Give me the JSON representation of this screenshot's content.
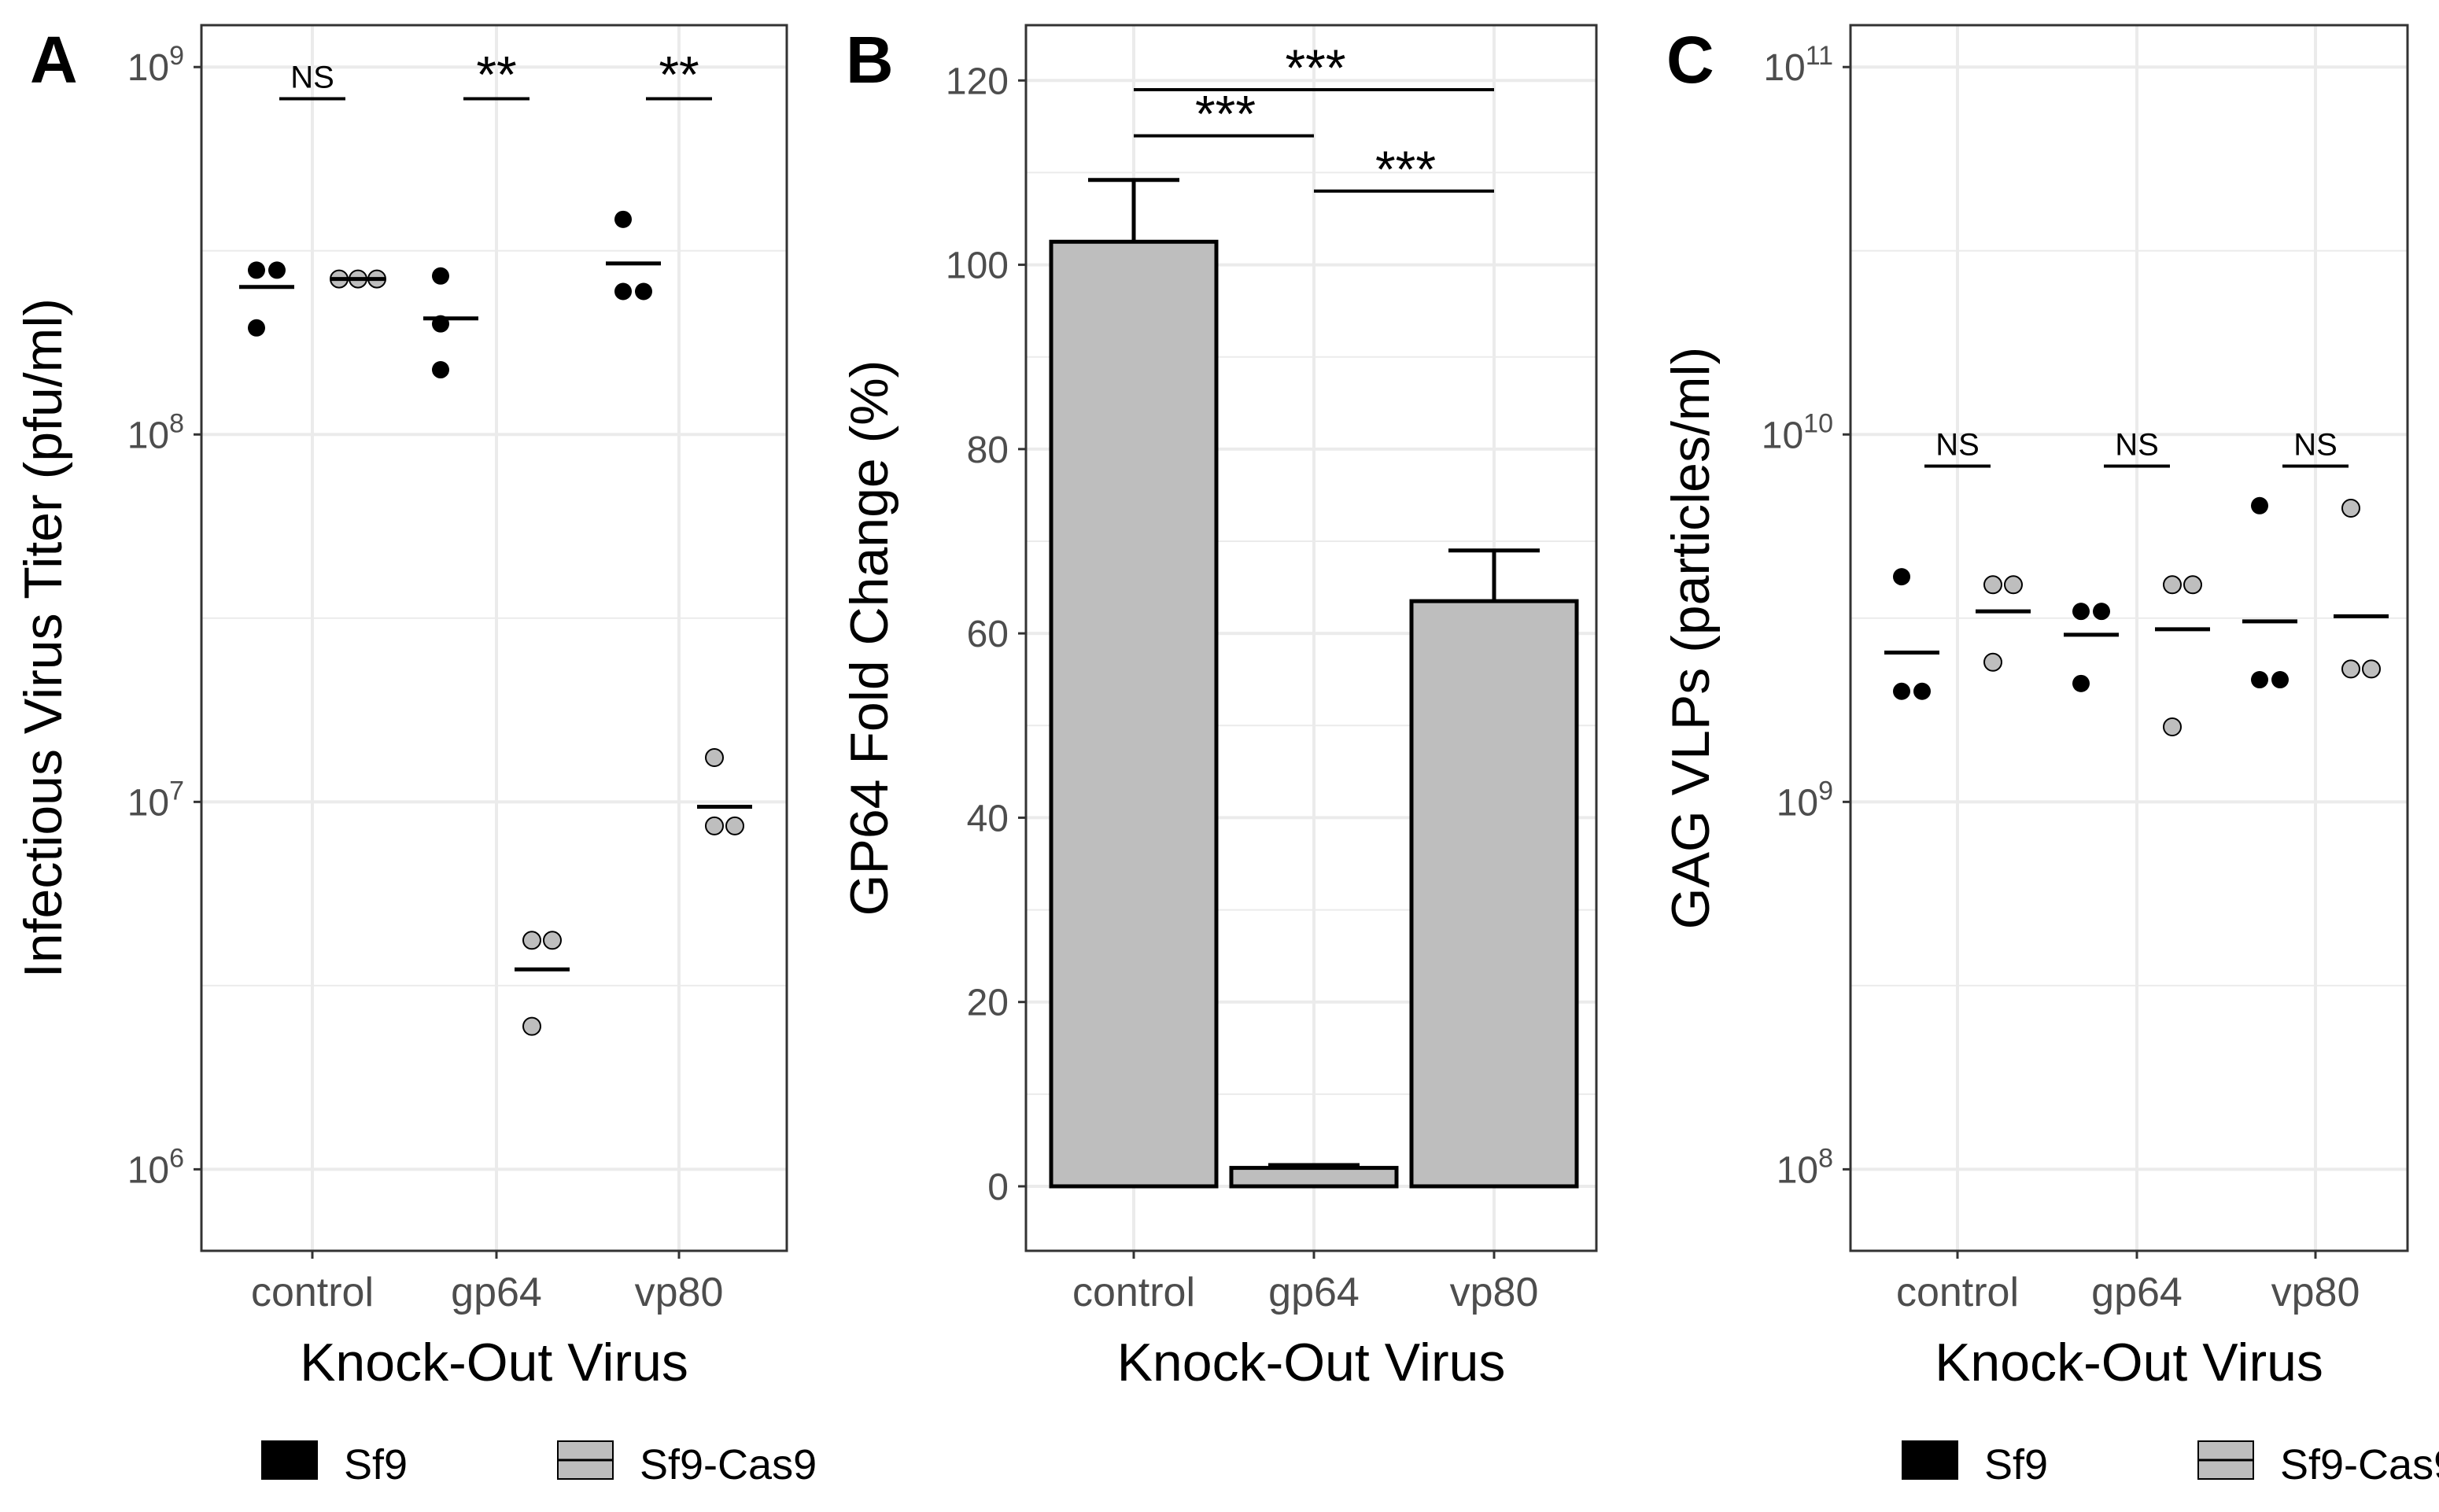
{
  "colors": {
    "sf9": "#000000",
    "sf9_cas9": "#bebebe",
    "bar_fill": "#bebebe",
    "grid": "#ebebeb"
  },
  "legend": {
    "items": [
      {
        "label": "Sf9",
        "color": "#000000"
      },
      {
        "label": "Sf9-Cas9",
        "color": "#bebebe"
      }
    ]
  },
  "chart_data": [
    {
      "panel_label": "A",
      "type": "scatter",
      "yscale": "log10",
      "ylim": [
        600000,
        1300000000
      ],
      "yticks": [
        1000000,
        10000000,
        100000000,
        1000000000
      ],
      "ytick_labels": [
        {
          "base": "10",
          "exp": "6"
        },
        {
          "base": "10",
          "exp": "7"
        },
        {
          "base": "10",
          "exp": "8"
        },
        {
          "base": "10",
          "exp": "9"
        }
      ],
      "categories": [
        "control",
        "gp64",
        "vp80"
      ],
      "xlabel": "Knock-Out Virus",
      "ylabel": "Infectious Virus Titer (pfu/ml)",
      "series": [
        {
          "name": "Sf9",
          "color": "#000000",
          "points": [
            [
              280000000,
              280000000,
              195000000
            ],
            [
              270000000,
              200000000,
              150000000
            ],
            [
              385000000,
              245000000,
              245000000
            ]
          ],
          "means": [
            252000000,
            207000000,
            292000000
          ]
        },
        {
          "name": "Sf9-Cas9",
          "color": "#bebebe",
          "points": [
            [
              265000000,
              265000000,
              265000000
            ],
            [
              4200000,
              4200000,
              2450000
            ],
            [
              13200000,
              8600000,
              8600000
            ]
          ],
          "means": [
            265000000,
            3500000,
            9700000
          ]
        }
      ],
      "annotations": [
        {
          "category": "control",
          "text": "NS",
          "y": 800000000
        },
        {
          "category": "gp64",
          "text": "**",
          "y": 800000000
        },
        {
          "category": "vp80",
          "text": "**",
          "y": 800000000
        }
      ]
    },
    {
      "panel_label": "B",
      "type": "bar",
      "ylim": [
        -7,
        126
      ],
      "yticks": [
        0,
        20,
        40,
        60,
        80,
        100,
        120
      ],
      "ytick_labels": [
        "0",
        "20",
        "40",
        "60",
        "80",
        "100",
        "120"
      ],
      "categories": [
        "control",
        "gp64",
        "vp80"
      ],
      "values": [
        102.5,
        2.0,
        63.5
      ],
      "errors": [
        6.7,
        0.3,
        5.5
      ],
      "xlabel": "Knock-Out Virus",
      "ylabel": "GP64 Fold Change (%)",
      "annotations": [
        {
          "from": "control",
          "to": "gp64",
          "text": "***",
          "y": 114
        },
        {
          "from": "control",
          "to": "vp80",
          "text": "***",
          "y": 119
        },
        {
          "from": "gp64",
          "to": "vp80",
          "text": "***",
          "y": 108
        }
      ]
    },
    {
      "panel_label": "C",
      "type": "scatter",
      "yscale": "log10",
      "ylim": [
        60000000,
        130000000000
      ],
      "yticks": [
        100000000,
        1000000000,
        10000000000,
        100000000000
      ],
      "ytick_labels": [
        {
          "base": "10",
          "exp": "8"
        },
        {
          "base": "10",
          "exp": "9"
        },
        {
          "base": "10",
          "exp": "10"
        },
        {
          "base": "10",
          "exp": "11"
        }
      ],
      "categories": [
        "control",
        "gp64",
        "vp80"
      ],
      "xlabel": "Knock-Out Virus",
      "ylabel": "GAG VLPs (particles/ml)",
      "series": [
        {
          "name": "Sf9",
          "color": "#000000",
          "points": [
            [
              4100000000,
              2000000000,
              2000000000
            ],
            [
              3300000000,
              3300000000,
              2100000000
            ],
            [
              6400000000,
              2150000000,
              2150000000
            ]
          ],
          "means": [
            2550000000,
            2850000000,
            3100000000
          ]
        },
        {
          "name": "Sf9-Cas9",
          "color": "#bebebe",
          "points": [
            [
              3900000000,
              3900000000,
              2400000000
            ],
            [
              3900000000,
              3900000000,
              1600000000
            ],
            [
              6300000000,
              2300000000,
              2300000000
            ]
          ],
          "means": [
            3300000000,
            2950000000,
            3200000000
          ]
        }
      ],
      "annotations": [
        {
          "category": "control",
          "text": "NS",
          "y": 8000000000
        },
        {
          "category": "gp64",
          "text": "NS",
          "y": 8000000000
        },
        {
          "category": "vp80",
          "text": "NS",
          "y": 8000000000
        }
      ]
    }
  ]
}
